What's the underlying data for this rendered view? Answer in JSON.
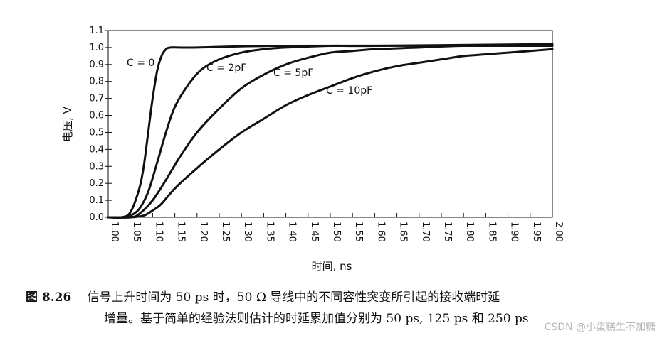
{
  "chart_data": {
    "type": "line",
    "ylabel": "电压, V",
    "xlabel": "时间, ns",
    "xlim": [
      1.0,
      2.0
    ],
    "ylim": [
      0.0,
      1.1
    ],
    "x_ticks": [
      "1.00",
      "1.05",
      "1.10",
      "1.15",
      "1.20",
      "1.25",
      "1.30",
      "1.35",
      "1.40",
      "1.45",
      "1.50",
      "1.55",
      "1.60",
      "1.65",
      "1.70",
      "1.75",
      "1.80",
      "1.85",
      "1.90",
      "1.95",
      "2.00"
    ],
    "y_ticks": [
      "0.0",
      "0.1",
      "0.2",
      "0.3",
      "0.4",
      "0.5",
      "0.6",
      "0.7",
      "0.8",
      "0.9",
      "1.0",
      "1.1"
    ],
    "series": [
      {
        "name": "C = 0",
        "x": [
          1.0,
          1.03,
          1.05,
          1.07,
          1.08,
          1.09,
          1.1,
          1.11,
          1.12,
          1.13,
          1.14,
          1.16,
          1.2,
          1.4,
          2.0
        ],
        "y": [
          0.0,
          0.0,
          0.03,
          0.17,
          0.3,
          0.5,
          0.7,
          0.86,
          0.95,
          0.99,
          1.0,
          1.0,
          1.0,
          1.01,
          1.01
        ]
      },
      {
        "name": "C = 2pF",
        "x": [
          1.0,
          1.03,
          1.05,
          1.07,
          1.09,
          1.11,
          1.13,
          1.15,
          1.18,
          1.21,
          1.25,
          1.3,
          1.35,
          1.4,
          1.5,
          1.6,
          2.0
        ],
        "y": [
          0.0,
          0.0,
          0.01,
          0.05,
          0.15,
          0.32,
          0.5,
          0.65,
          0.78,
          0.87,
          0.93,
          0.97,
          0.99,
          1.0,
          1.01,
          1.01,
          1.02
        ]
      },
      {
        "name": "C = 5pF",
        "x": [
          1.0,
          1.05,
          1.07,
          1.1,
          1.13,
          1.16,
          1.2,
          1.25,
          1.3,
          1.35,
          1.4,
          1.45,
          1.5,
          1.55,
          1.6,
          1.7,
          1.8,
          2.0
        ],
        "y": [
          0.0,
          0.0,
          0.02,
          0.1,
          0.22,
          0.35,
          0.5,
          0.64,
          0.76,
          0.84,
          0.9,
          0.94,
          0.97,
          0.98,
          0.99,
          1.0,
          1.01,
          1.01
        ]
      },
      {
        "name": "C = 10pF",
        "x": [
          1.0,
          1.05,
          1.08,
          1.1,
          1.12,
          1.15,
          1.2,
          1.25,
          1.3,
          1.35,
          1.4,
          1.45,
          1.5,
          1.55,
          1.6,
          1.65,
          1.7,
          1.75,
          1.8,
          1.85,
          1.9,
          1.95,
          2.0
        ],
        "y": [
          0.0,
          0.0,
          0.01,
          0.04,
          0.08,
          0.17,
          0.29,
          0.4,
          0.5,
          0.58,
          0.66,
          0.72,
          0.77,
          0.82,
          0.86,
          0.89,
          0.91,
          0.93,
          0.95,
          0.96,
          0.97,
          0.98,
          0.99
        ]
      }
    ],
    "annotations": [
      {
        "text": "C = 0",
        "series": "C = 0"
      },
      {
        "text": "C = 2pF",
        "series": "C = 2pF"
      },
      {
        "text": "C = 5pF",
        "series": "C = 5pF"
      },
      {
        "text": "C = 10pF",
        "series": "C = 10pF"
      }
    ],
    "colors": {
      "line": "#111111",
      "axis": "#111111",
      "background": "#ffffff"
    }
  },
  "caption": {
    "number": "图 8.26",
    "line1": "信号上升时间为 50 ps 时，50 Ω 导线中的不同容性突变所引起的接收端时延",
    "line2": "增量。基于简单的经验法则估计的时延累加值分别为 50 ps, 125 ps 和 250 ps"
  },
  "watermark": "CSDN @小蛋糕生不加糖"
}
